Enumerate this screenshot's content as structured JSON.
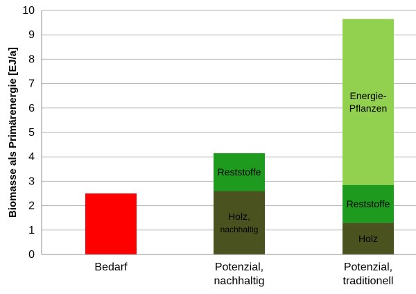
{
  "chart_data": {
    "type": "bar",
    "stacked": true,
    "ylabel": "Biomasse  als Primärenergie [EJ/a]",
    "ylim": [
      0,
      10
    ],
    "y_ticks": [
      0,
      1,
      2,
      3,
      4,
      5,
      6,
      7,
      8,
      9,
      10
    ],
    "grid": true,
    "categories": [
      {
        "lines": [
          "Bedarf"
        ]
      },
      {
        "lines": [
          "Potenzial,",
          "nachhaltig"
        ]
      },
      {
        "lines": [
          "Potenzial,",
          "traditionell"
        ]
      }
    ],
    "bars": [
      {
        "segments": [
          {
            "from": 0,
            "to": 2.5,
            "color": "#ff0000",
            "label_lines": []
          }
        ]
      },
      {
        "segments": [
          {
            "from": 0,
            "to": 2.6,
            "color": "#4a5320",
            "label_lines": [
              "Holz,",
              "nachhaltig"
            ]
          },
          {
            "from": 2.6,
            "to": 4.15,
            "color": "#1e9a1e",
            "label_lines": [
              "Reststoffe"
            ]
          }
        ]
      },
      {
        "segments": [
          {
            "from": 0,
            "to": 1.3,
            "color": "#4a5320",
            "label_lines": [
              "Holz"
            ]
          },
          {
            "from": 1.3,
            "to": 2.85,
            "color": "#1e9a1e",
            "label_lines": [
              "Reststoffe"
            ]
          },
          {
            "from": 2.85,
            "to": 9.65,
            "color": "#92d050",
            "label_lines": [
              "Energie-",
              "Pflanzen"
            ]
          }
        ]
      }
    ],
    "colors": {
      "grid": "#b3b3b3",
      "axis": "#8c8c8c"
    }
  }
}
